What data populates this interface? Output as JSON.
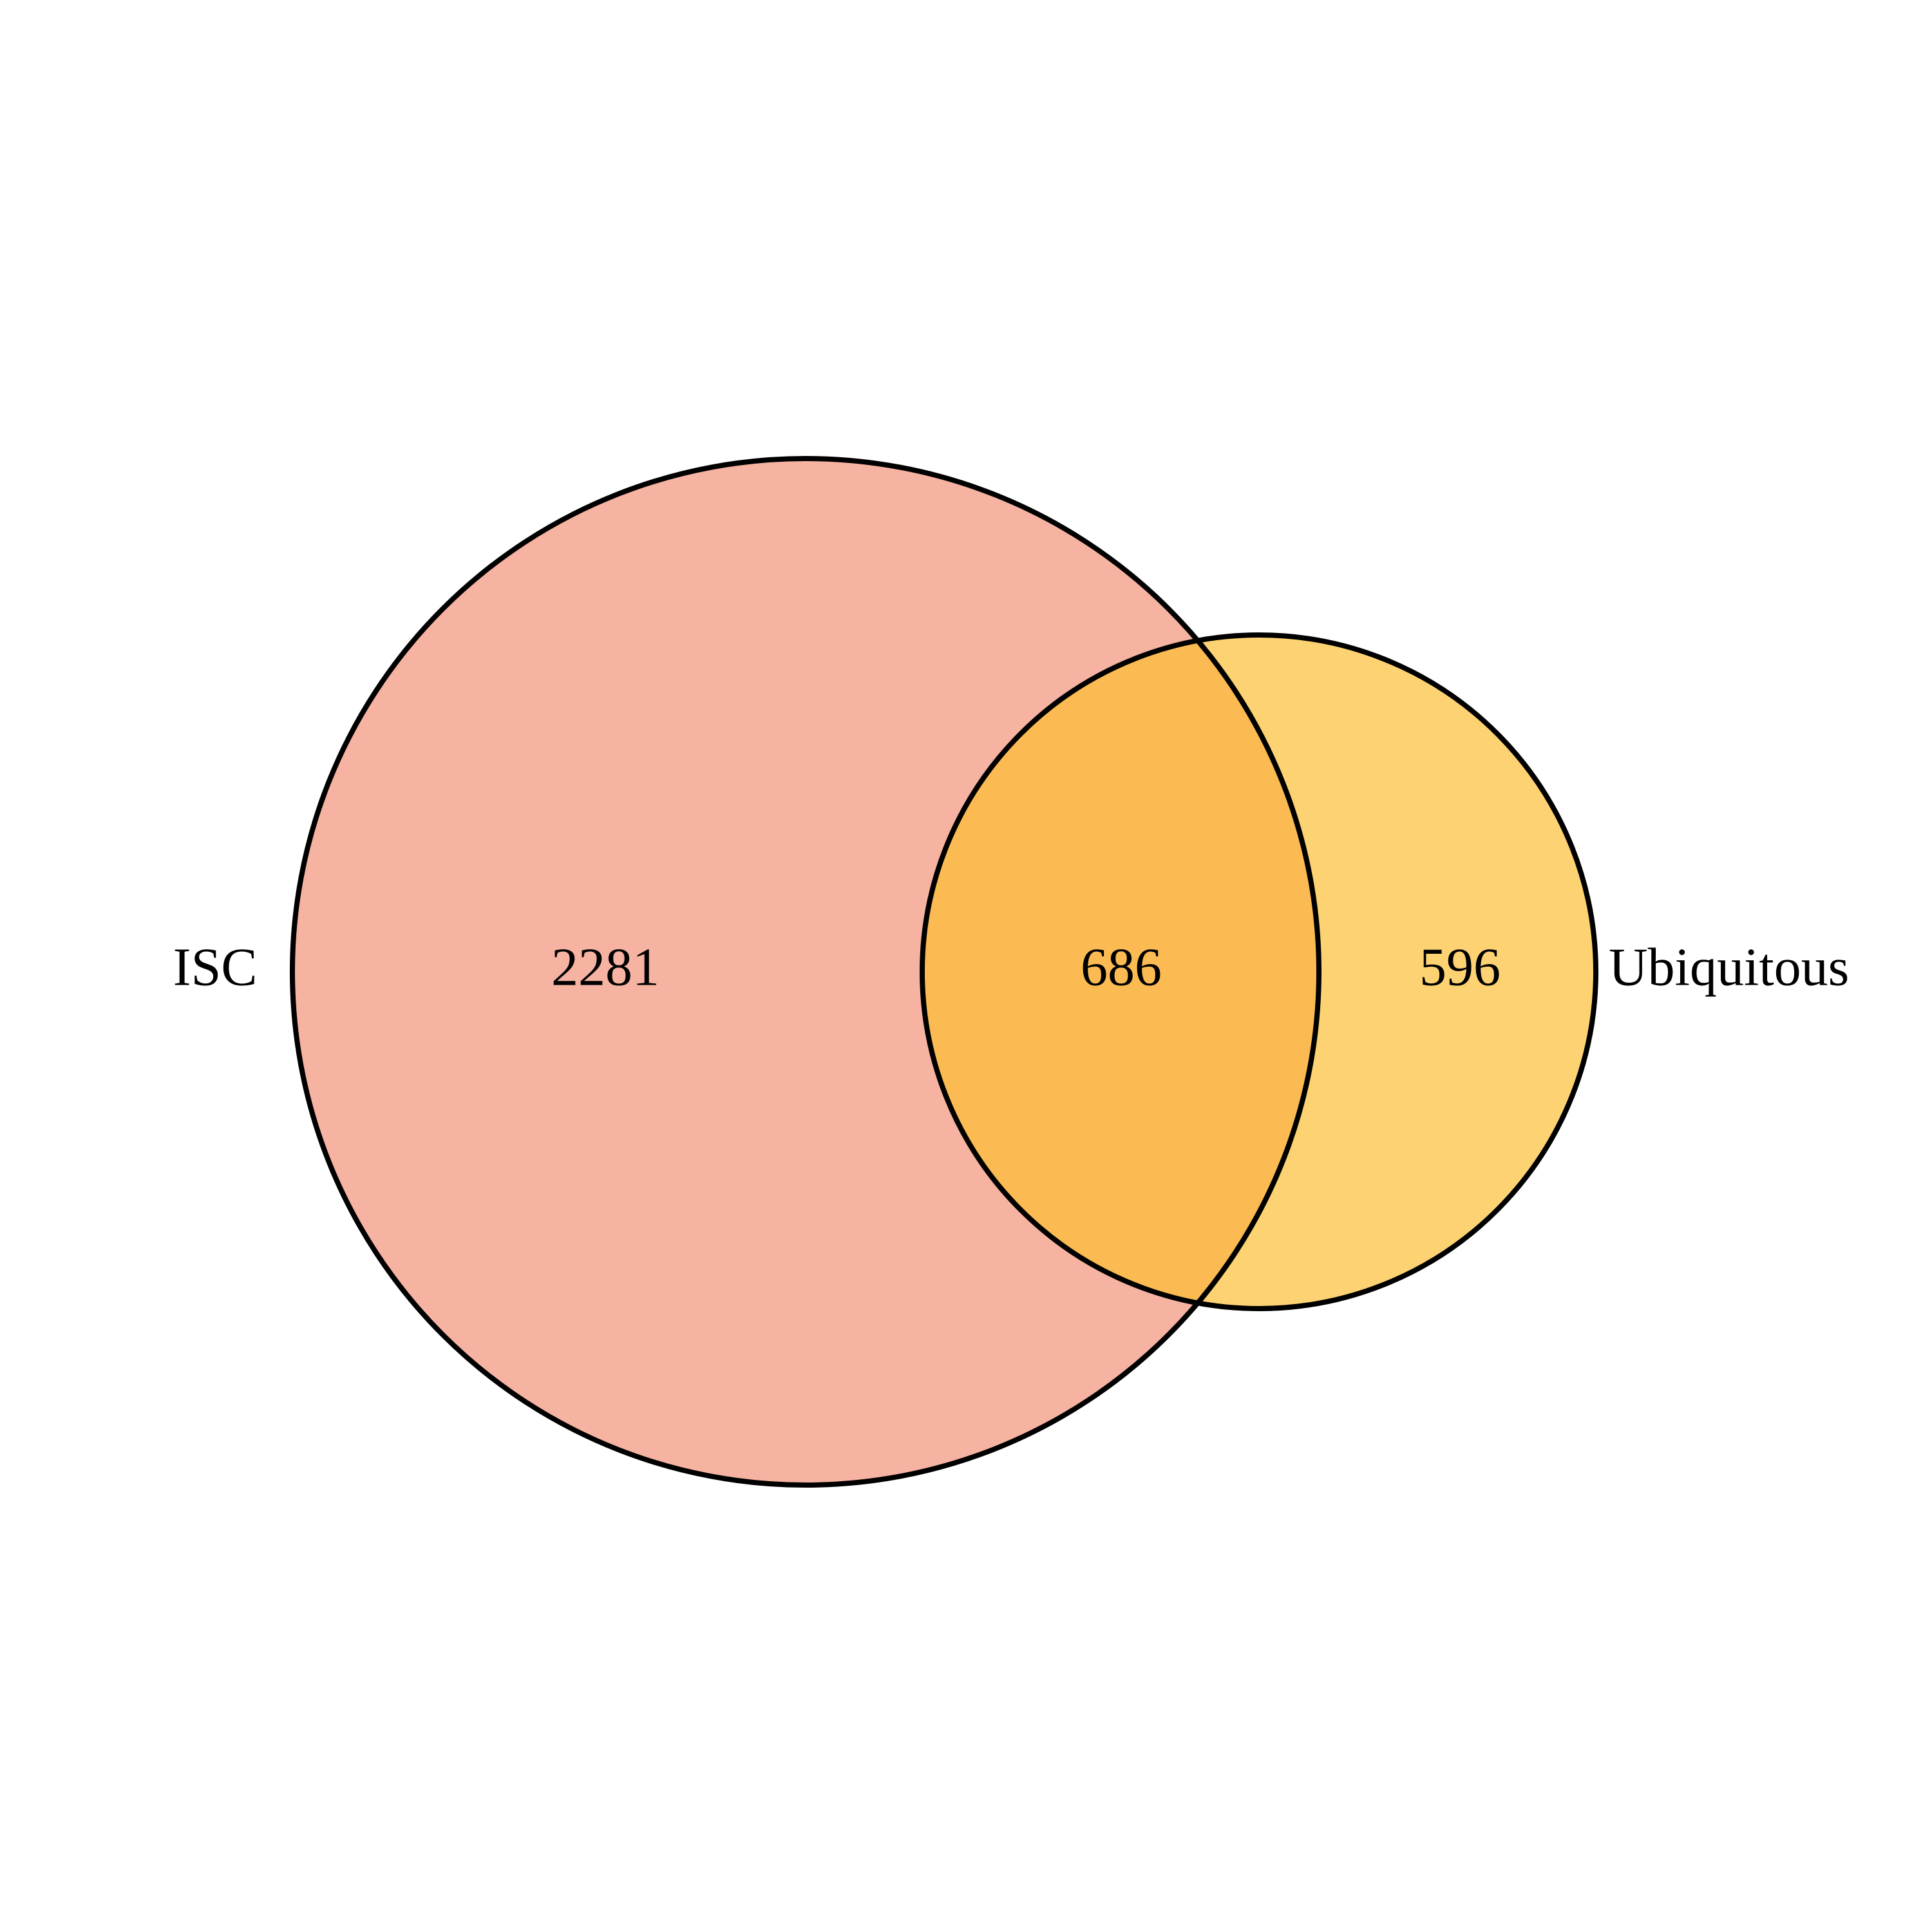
{
  "diagram": {
    "type": "venn",
    "sets": [
      {
        "id": "isc",
        "label": "ISC",
        "only_count": "2281",
        "color": "#f6b3a2"
      },
      {
        "id": "ubiquitous",
        "label": "Ubiquitous",
        "only_count": "596",
        "color": "#fdd272"
      }
    ],
    "intersection": {
      "count": "686",
      "color": "#fbbb52"
    },
    "outline_color": "#000000",
    "background": "#ffffff"
  }
}
